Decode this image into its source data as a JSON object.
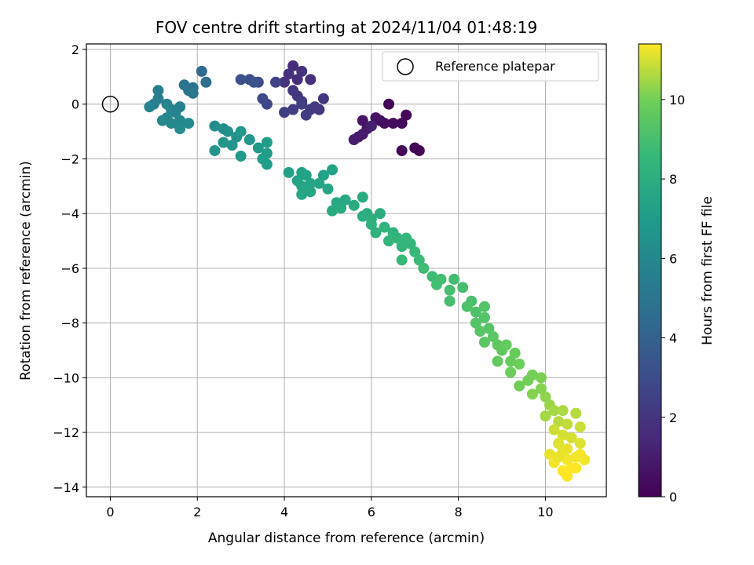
{
  "chart_data": {
    "type": "scatter",
    "title": "FOV centre drift starting at 2024/11/04 01:48:19",
    "xlabel": "Angular distance from reference (arcmin)",
    "ylabel": "Rotation from reference (arcmin)",
    "colorbar_label": "Hours from first FF file",
    "xlim": [
      -0.55,
      11.4
    ],
    "ylim": [
      -14.35,
      2.2
    ],
    "x_ticks": [
      0,
      2,
      4,
      6,
      8,
      10
    ],
    "y_ticks": [
      2,
      0,
      -2,
      -4,
      -6,
      -8,
      -10,
      -12,
      -14
    ],
    "colorbar_range": [
      0,
      11.4
    ],
    "colorbar_ticks": [
      0,
      2,
      4,
      6,
      8,
      10
    ],
    "colormap": "viridis",
    "grid": true,
    "legend": {
      "position": "top-right",
      "entries": [
        "Reference platepar"
      ]
    },
    "reference_point": {
      "x": 0,
      "y": 0
    },
    "points": [
      {
        "x": 6.4,
        "y": 0.0,
        "c": 0.1
      },
      {
        "x": 6.8,
        "y": -0.4,
        "c": 0.2
      },
      {
        "x": 6.7,
        "y": -0.7,
        "c": 0.3
      },
      {
        "x": 6.5,
        "y": -0.7,
        "c": 0.4
      },
      {
        "x": 6.2,
        "y": -0.6,
        "c": 0.5
      },
      {
        "x": 6.1,
        "y": -0.5,
        "c": 0.6
      },
      {
        "x": 5.8,
        "y": -0.6,
        "c": 0.7
      },
      {
        "x": 5.9,
        "y": -0.9,
        "c": 0.8
      },
      {
        "x": 5.8,
        "y": -1.1,
        "c": 0.9
      },
      {
        "x": 5.6,
        "y": -1.3,
        "c": 1.0
      },
      {
        "x": 6.0,
        "y": -0.8,
        "c": 1.1
      },
      {
        "x": 7.1,
        "y": -1.7,
        "c": 0.05
      },
      {
        "x": 7.0,
        "y": -1.6,
        "c": 0.15
      },
      {
        "x": 6.7,
        "y": -1.7,
        "c": 0.25
      },
      {
        "x": 6.3,
        "y": -0.7,
        "c": 0.45
      },
      {
        "x": 5.7,
        "y": -1.2,
        "c": 0.95
      },
      {
        "x": 4.2,
        "y": 1.4,
        "c": 1.6
      },
      {
        "x": 4.1,
        "y": 1.1,
        "c": 1.8
      },
      {
        "x": 4.3,
        "y": 0.9,
        "c": 1.7
      },
      {
        "x": 4.0,
        "y": 0.8,
        "c": 1.9
      },
      {
        "x": 4.2,
        "y": 0.5,
        "c": 2.0
      },
      {
        "x": 4.3,
        "y": 0.3,
        "c": 2.1
      },
      {
        "x": 4.4,
        "y": 0.1,
        "c": 2.2
      },
      {
        "x": 4.2,
        "y": -0.2,
        "c": 2.3
      },
      {
        "x": 4.0,
        "y": -0.3,
        "c": 2.4
      },
      {
        "x": 4.6,
        "y": -0.2,
        "c": 2.2
      },
      {
        "x": 4.8,
        "y": -0.2,
        "c": 2.1
      },
      {
        "x": 4.5,
        "y": -0.4,
        "c": 2.3
      },
      {
        "x": 4.9,
        "y": 0.2,
        "c": 2.0
      },
      {
        "x": 4.6,
        "y": 0.9,
        "c": 1.8
      },
      {
        "x": 4.4,
        "y": 1.2,
        "c": 1.9
      },
      {
        "x": 3.8,
        "y": 0.8,
        "c": 2.6
      },
      {
        "x": 3.6,
        "y": 0.0,
        "c": 2.8
      },
      {
        "x": 3.5,
        "y": 0.2,
        "c": 2.9
      },
      {
        "x": 3.4,
        "y": 0.8,
        "c": 3.0
      },
      {
        "x": 3.2,
        "y": 0.9,
        "c": 3.1
      },
      {
        "x": 3.0,
        "y": 0.9,
        "c": 3.2
      },
      {
        "x": 3.3,
        "y": 0.8,
        "c": 3.3
      },
      {
        "x": 4.7,
        "y": -0.1,
        "c": 2.2
      },
      {
        "x": 4.4,
        "y": 0.0,
        "c": 2.4
      },
      {
        "x": 2.1,
        "y": 1.2,
        "c": 4.4
      },
      {
        "x": 2.2,
        "y": 0.8,
        "c": 4.6
      },
      {
        "x": 1.9,
        "y": 0.6,
        "c": 4.8
      },
      {
        "x": 1.8,
        "y": 0.5,
        "c": 4.9
      },
      {
        "x": 1.7,
        "y": 0.7,
        "c": 5.0
      },
      {
        "x": 1.9,
        "y": 0.4,
        "c": 5.1
      },
      {
        "x": 1.1,
        "y": 0.5,
        "c": 5.4
      },
      {
        "x": 1.1,
        "y": 0.2,
        "c": 5.5
      },
      {
        "x": 1.0,
        "y": 0.0,
        "c": 5.6
      },
      {
        "x": 0.9,
        "y": -0.1,
        "c": 5.7
      },
      {
        "x": 1.3,
        "y": 0.0,
        "c": 5.8
      },
      {
        "x": 1.4,
        "y": -0.2,
        "c": 5.9
      },
      {
        "x": 1.6,
        "y": -0.1,
        "c": 5.6
      },
      {
        "x": 1.5,
        "y": -0.3,
        "c": 5.7
      },
      {
        "x": 1.3,
        "y": -0.5,
        "c": 5.8
      },
      {
        "x": 1.2,
        "y": -0.6,
        "c": 5.9
      },
      {
        "x": 1.6,
        "y": -0.6,
        "c": 6.0
      },
      {
        "x": 1.8,
        "y": -0.7,
        "c": 6.1
      },
      {
        "x": 1.6,
        "y": -0.9,
        "c": 6.2
      },
      {
        "x": 1.4,
        "y": -0.7,
        "c": 6.0
      },
      {
        "x": 2.4,
        "y": -0.8,
        "c": 6.2
      },
      {
        "x": 2.6,
        "y": -0.9,
        "c": 6.3
      },
      {
        "x": 2.7,
        "y": -1.0,
        "c": 6.4
      },
      {
        "x": 2.9,
        "y": -1.2,
        "c": 6.5
      },
      {
        "x": 2.4,
        "y": -1.7,
        "c": 6.6
      },
      {
        "x": 2.6,
        "y": -1.4,
        "c": 6.7
      },
      {
        "x": 2.8,
        "y": -1.5,
        "c": 6.6
      },
      {
        "x": 3.0,
        "y": -1.0,
        "c": 6.8
      },
      {
        "x": 3.2,
        "y": -1.3,
        "c": 6.7
      },
      {
        "x": 3.4,
        "y": -1.6,
        "c": 6.9
      },
      {
        "x": 3.6,
        "y": -1.8,
        "c": 7.0
      },
      {
        "x": 3.5,
        "y": -2.0,
        "c": 7.1
      },
      {
        "x": 3.6,
        "y": -2.2,
        "c": 7.2
      },
      {
        "x": 3.0,
        "y": -1.9,
        "c": 6.8
      },
      {
        "x": 3.6,
        "y": -1.4,
        "c": 7.0
      },
      {
        "x": 4.1,
        "y": -2.5,
        "c": 7.3
      },
      {
        "x": 4.4,
        "y": -2.5,
        "c": 7.3
      },
      {
        "x": 4.3,
        "y": -2.8,
        "c": 7.4
      },
      {
        "x": 4.5,
        "y": -2.6,
        "c": 7.4
      },
      {
        "x": 4.6,
        "y": -2.9,
        "c": 7.5
      },
      {
        "x": 4.4,
        "y": -3.0,
        "c": 7.5
      },
      {
        "x": 4.6,
        "y": -3.2,
        "c": 7.6
      },
      {
        "x": 4.8,
        "y": -2.9,
        "c": 7.5
      },
      {
        "x": 5.0,
        "y": -3.1,
        "c": 7.6
      },
      {
        "x": 4.4,
        "y": -3.3,
        "c": 7.6
      },
      {
        "x": 4.9,
        "y": -2.6,
        "c": 7.4
      },
      {
        "x": 5.1,
        "y": -2.4,
        "c": 7.4
      },
      {
        "x": 5.2,
        "y": -3.6,
        "c": 7.7
      },
      {
        "x": 5.1,
        "y": -3.9,
        "c": 7.8
      },
      {
        "x": 5.3,
        "y": -3.8,
        "c": 7.8
      },
      {
        "x": 5.4,
        "y": -3.5,
        "c": 7.7
      },
      {
        "x": 5.6,
        "y": -3.7,
        "c": 7.8
      },
      {
        "x": 5.8,
        "y": -3.4,
        "c": 7.9
      },
      {
        "x": 5.9,
        "y": -4.0,
        "c": 8.0
      },
      {
        "x": 5.8,
        "y": -4.1,
        "c": 8.0
      },
      {
        "x": 6.0,
        "y": -4.2,
        "c": 8.1
      },
      {
        "x": 6.2,
        "y": -4.0,
        "c": 8.0
      },
      {
        "x": 6.0,
        "y": -4.4,
        "c": 8.2
      },
      {
        "x": 6.1,
        "y": -4.7,
        "c": 8.2
      },
      {
        "x": 6.3,
        "y": -4.5,
        "c": 8.3
      },
      {
        "x": 6.5,
        "y": -4.7,
        "c": 8.3
      },
      {
        "x": 6.4,
        "y": -5.0,
        "c": 8.4
      },
      {
        "x": 6.6,
        "y": -4.9,
        "c": 8.4
      },
      {
        "x": 6.8,
        "y": -4.9,
        "c": 8.5
      },
      {
        "x": 6.7,
        "y": -5.2,
        "c": 8.5
      },
      {
        "x": 6.9,
        "y": -5.1,
        "c": 8.5
      },
      {
        "x": 6.7,
        "y": -5.7,
        "c": 8.6
      },
      {
        "x": 7.0,
        "y": -5.4,
        "c": 8.6
      },
      {
        "x": 7.1,
        "y": -5.7,
        "c": 8.7
      },
      {
        "x": 7.2,
        "y": -6.0,
        "c": 8.8
      },
      {
        "x": 7.4,
        "y": -6.3,
        "c": 8.8
      },
      {
        "x": 7.6,
        "y": -6.4,
        "c": 8.9
      },
      {
        "x": 7.5,
        "y": -6.6,
        "c": 8.9
      },
      {
        "x": 7.8,
        "y": -6.8,
        "c": 9.0
      },
      {
        "x": 7.8,
        "y": -7.2,
        "c": 9.0
      },
      {
        "x": 7.9,
        "y": -6.4,
        "c": 8.9
      },
      {
        "x": 8.1,
        "y": -6.7,
        "c": 9.0
      },
      {
        "x": 8.3,
        "y": -7.2,
        "c": 9.1
      },
      {
        "x": 8.2,
        "y": -7.4,
        "c": 9.2
      },
      {
        "x": 8.4,
        "y": -7.6,
        "c": 9.2
      },
      {
        "x": 8.6,
        "y": -7.4,
        "c": 9.3
      },
      {
        "x": 8.6,
        "y": -7.8,
        "c": 9.3
      },
      {
        "x": 8.4,
        "y": -8.0,
        "c": 9.3
      },
      {
        "x": 8.5,
        "y": -8.3,
        "c": 9.4
      },
      {
        "x": 8.7,
        "y": -8.2,
        "c": 9.4
      },
      {
        "x": 8.6,
        "y": -8.7,
        "c": 9.5
      },
      {
        "x": 8.8,
        "y": -8.5,
        "c": 9.5
      },
      {
        "x": 8.9,
        "y": -8.8,
        "c": 9.6
      },
      {
        "x": 9.0,
        "y": -9.0,
        "c": 9.6
      },
      {
        "x": 9.1,
        "y": -8.8,
        "c": 9.7
      },
      {
        "x": 8.9,
        "y": -9.4,
        "c": 9.7
      },
      {
        "x": 9.2,
        "y": -9.4,
        "c": 9.8
      },
      {
        "x": 9.3,
        "y": -9.1,
        "c": 9.8
      },
      {
        "x": 9.4,
        "y": -9.5,
        "c": 9.9
      },
      {
        "x": 9.2,
        "y": -9.8,
        "c": 9.9
      },
      {
        "x": 9.4,
        "y": -10.3,
        "c": 10.0
      },
      {
        "x": 9.6,
        "y": -10.1,
        "c": 10.0
      },
      {
        "x": 9.7,
        "y": -9.9,
        "c": 10.0
      },
      {
        "x": 9.9,
        "y": -10.0,
        "c": 10.1
      },
      {
        "x": 9.7,
        "y": -10.6,
        "c": 10.2
      },
      {
        "x": 9.9,
        "y": -10.4,
        "c": 10.2
      },
      {
        "x": 10.0,
        "y": -10.7,
        "c": 10.3
      },
      {
        "x": 10.1,
        "y": -11.0,
        "c": 10.4
      },
      {
        "x": 10.0,
        "y": -11.4,
        "c": 10.5
      },
      {
        "x": 10.2,
        "y": -11.2,
        "c": 10.5
      },
      {
        "x": 10.4,
        "y": -11.2,
        "c": 10.6
      },
      {
        "x": 10.3,
        "y": -11.6,
        "c": 10.7
      },
      {
        "x": 10.5,
        "y": -11.7,
        "c": 10.8
      },
      {
        "x": 10.7,
        "y": -11.3,
        "c": 10.7
      },
      {
        "x": 10.8,
        "y": -11.8,
        "c": 10.9
      },
      {
        "x": 10.2,
        "y": -11.9,
        "c": 10.9
      },
      {
        "x": 10.4,
        "y": -12.1,
        "c": 11.0
      },
      {
        "x": 10.6,
        "y": -12.2,
        "c": 11.0
      },
      {
        "x": 10.8,
        "y": -12.4,
        "c": 11.1
      },
      {
        "x": 10.3,
        "y": -12.4,
        "c": 11.1
      },
      {
        "x": 10.5,
        "y": -12.6,
        "c": 11.2
      },
      {
        "x": 10.1,
        "y": -12.8,
        "c": 11.2
      },
      {
        "x": 10.4,
        "y": -12.7,
        "c": 11.2
      },
      {
        "x": 10.7,
        "y": -12.9,
        "c": 11.3
      },
      {
        "x": 10.9,
        "y": -13.0,
        "c": 11.3
      },
      {
        "x": 10.2,
        "y": -13.1,
        "c": 11.3
      },
      {
        "x": 10.5,
        "y": -13.0,
        "c": 11.3
      },
      {
        "x": 10.6,
        "y": -13.3,
        "c": 11.4
      },
      {
        "x": 10.4,
        "y": -13.4,
        "c": 11.4
      },
      {
        "x": 10.7,
        "y": -13.3,
        "c": 11.4
      },
      {
        "x": 10.5,
        "y": -13.6,
        "c": 11.4
      },
      {
        "x": 10.8,
        "y": -12.8,
        "c": 11.3
      },
      {
        "x": 10.3,
        "y": -12.9,
        "c": 11.2
      }
    ]
  }
}
